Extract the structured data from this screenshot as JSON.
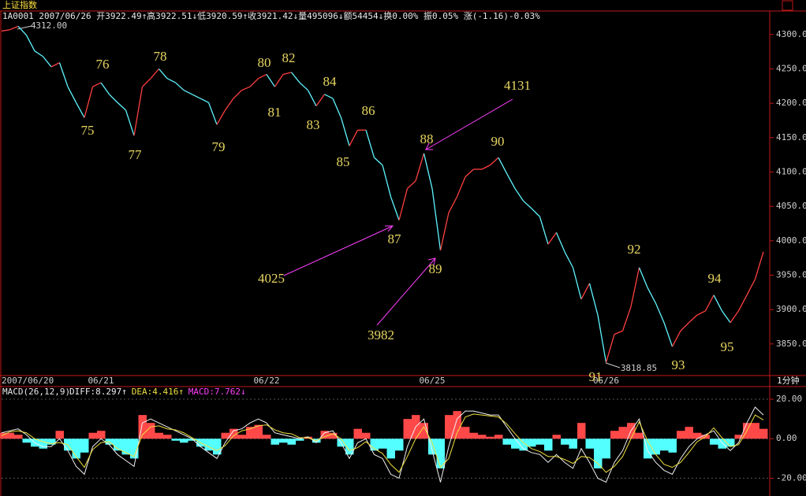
{
  "header": {
    "title": "上证指数",
    "quote": "1A0001 2007/06/26 开3922.49↑高3922.51↓低3920.59↑收3921.42↓量495096↓额54454↓换0.00% 振0.05% 涨(-1.16)-0.03%",
    "period": "1分钟"
  },
  "chart_data": [
    {
      "type": "line",
      "categories": [
        "2007/06/20",
        null,
        null,
        null,
        null,
        null,
        null,
        null,
        null,
        null,
        null,
        null,
        "06/21",
        null,
        null,
        null,
        null,
        null,
        null,
        null,
        null,
        null,
        null,
        null,
        null,
        null,
        null,
        null,
        null,
        null,
        null,
        null,
        "06/22",
        null,
        null,
        null,
        null,
        null,
        null,
        null,
        null,
        null,
        null,
        null,
        null,
        null,
        null,
        null,
        null,
        null,
        null,
        null,
        "06/25",
        null,
        null,
        null,
        null,
        null,
        null,
        null,
        null,
        null,
        null,
        null,
        null,
        null,
        null,
        null,
        null,
        null,
        null,
        null,
        null,
        "06/26",
        null,
        null,
        null,
        null,
        null,
        null,
        null,
        null,
        null,
        null,
        null,
        null,
        null,
        null,
        null,
        null,
        null,
        null,
        null
      ],
      "values": [
        4305,
        4307,
        4312,
        4299,
        4276,
        4268,
        4253,
        4259,
        4224,
        4201,
        4179,
        4224,
        4230,
        4213,
        4201,
        4190,
        4153,
        4224,
        4236,
        4250,
        4236,
        4230,
        4219,
        4213,
        4207,
        4201,
        4169,
        4190,
        4207,
        4219,
        4224,
        4236,
        4242,
        4224,
        4242,
        4245,
        4230,
        4219,
        4196,
        4213,
        4207,
        4179,
        4138,
        4161,
        4161,
        4121,
        4110,
        4064,
        4030,
        4076,
        4087,
        4127,
        4076,
        3986,
        4041,
        4064,
        4093,
        4104,
        4104,
        4110,
        4121,
        4098,
        4076,
        4058,
        4047,
        4035,
        3995,
        4012,
        3984,
        3961,
        3915,
        3938,
        3892,
        3823,
        3864,
        3869,
        3904,
        3961,
        3932,
        3909,
        3881,
        3846,
        3869,
        3881,
        3892,
        3898,
        3921,
        3898,
        3881,
        3898,
        3921,
        3944,
        3984
      ],
      "up_color": "#ff4040",
      "down_color": "#5ff5ff",
      "ylim": [
        3804,
        4333
      ],
      "yticks": [
        {
          "value": 3850,
          "label": "3850.00"
        },
        {
          "value": 3900,
          "label": "3900.00"
        },
        {
          "value": 3950,
          "label": "3950.00"
        },
        {
          "value": 4000,
          "label": "4000.00"
        },
        {
          "value": 4050,
          "label": "4050.00"
        },
        {
          "value": 4100,
          "label": "4100.00"
        },
        {
          "value": 4150,
          "label": "4150.00"
        },
        {
          "value": 4200,
          "label": "4200.00"
        },
        {
          "value": 4250,
          "label": "4250.00"
        },
        {
          "value": 4300,
          "label": "4300.00"
        }
      ],
      "annotations": [
        "4312.00",
        "75",
        "76",
        "77",
        "78",
        "79",
        "80",
        "81",
        "82",
        "83",
        "84",
        "85",
        "86",
        "87",
        "88",
        "89",
        "90",
        "91",
        "92",
        "93",
        "94",
        "95",
        "3818.85",
        "4025",
        "4131",
        "3982"
      ]
    },
    {
      "type": "macd",
      "title": "MACD(26,12,9)",
      "ylim": [
        -27,
        26
      ],
      "yticks": [
        {
          "value": -20,
          "label": "-20.00"
        },
        {
          "value": 0,
          "label": "0.00"
        },
        {
          "value": 20,
          "label": "20.00"
        }
      ],
      "up_color": "#ff4848",
      "down_color": "#54ffff",
      "series": [
        {
          "name": "DIFF:8.297↑",
          "type": "line",
          "color": "#f0f0f0",
          "values": [
            3,
            4,
            5,
            2,
            -2,
            -4,
            -4,
            0,
            -6,
            -14,
            -18,
            -4,
            0,
            -3,
            -8,
            -11,
            -14,
            8,
            10,
            8,
            6,
            4,
            2,
            0,
            -4,
            -7,
            -10,
            -2,
            4,
            5,
            8,
            10,
            8,
            3,
            2,
            1,
            0,
            1,
            -2,
            3,
            4,
            -2,
            -10,
            -2,
            0,
            -8,
            -10,
            -18,
            -20,
            -4,
            6,
            10,
            -6,
            -22,
            -4,
            10,
            14,
            14,
            13,
            12,
            12,
            6,
            0,
            -5,
            -7,
            -8,
            -12,
            -8,
            -12,
            -15,
            -5,
            -12,
            -20,
            -22,
            -12,
            -6,
            4,
            10,
            -6,
            -12,
            -16,
            -18,
            -10,
            -4,
            0,
            2,
            4,
            -2,
            -6,
            -2,
            8,
            16,
            12
          ]
        },
        {
          "name": "DEA:4.416↑",
          "type": "line",
          "color": "#f0e040",
          "values": [
            1.5,
            3.5,
            4,
            3,
            0,
            -1.5,
            -2.5,
            -2,
            -3,
            -9,
            -14.5,
            -5.5,
            -2,
            -1.5,
            -5,
            -7,
            -9,
            2,
            6,
            6.5,
            5,
            4.5,
            3,
            0.5,
            -2,
            -4,
            -6,
            -3.5,
            1.5,
            4,
            5,
            6.5,
            7,
            4.5,
            3,
            2.5,
            0.5,
            0.5,
            -1,
            1,
            2.5,
            0,
            -6,
            -4.5,
            -1.5,
            -5,
            -7.5,
            -13,
            -17,
            -9,
            0,
            6,
            -2,
            -14.5,
            -10,
            3,
            11,
            12.5,
            12,
            11.5,
            11,
            7.5,
            2.5,
            -2,
            -5,
            -6.5,
            -9,
            -9,
            -10.5,
            -12.5,
            -9,
            -9.5,
            -12.5,
            -17,
            -14,
            -9,
            0,
            8.5,
            -1,
            -8,
            -13,
            -14.5,
            -12,
            -7,
            -1.5,
            1,
            5.5,
            0.5,
            -4,
            -3,
            4,
            12,
            9.5
          ]
        },
        {
          "name": "MACD:7.762↓",
          "type": "bar",
          "color": "#ff40ff",
          "values": [
            3,
            3,
            2,
            -2,
            -4,
            -5,
            -3,
            4,
            -6,
            -10,
            -7,
            3,
            4,
            -3,
            -6,
            -8,
            -10,
            12,
            8,
            3,
            2,
            -1,
            -2,
            -1,
            -4,
            -6,
            -8,
            3,
            5,
            2,
            6,
            7,
            2,
            -3,
            -2,
            -3,
            -1,
            1,
            -2,
            4,
            3,
            -4,
            -8,
            5,
            3,
            -6,
            -5,
            -10,
            -6,
            10,
            12,
            8,
            -8,
            -15,
            12,
            14,
            6,
            3,
            2,
            1,
            2,
            -3,
            -5,
            -6,
            -4,
            -3,
            -6,
            2,
            -3,
            -5,
            8,
            -5,
            -15,
            -10,
            4,
            6,
            8,
            3,
            -10,
            -8,
            -6,
            -7,
            4,
            6,
            3,
            2,
            -3,
            -5,
            -4,
            2,
            8,
            8,
            5
          ]
        }
      ]
    }
  ]
}
